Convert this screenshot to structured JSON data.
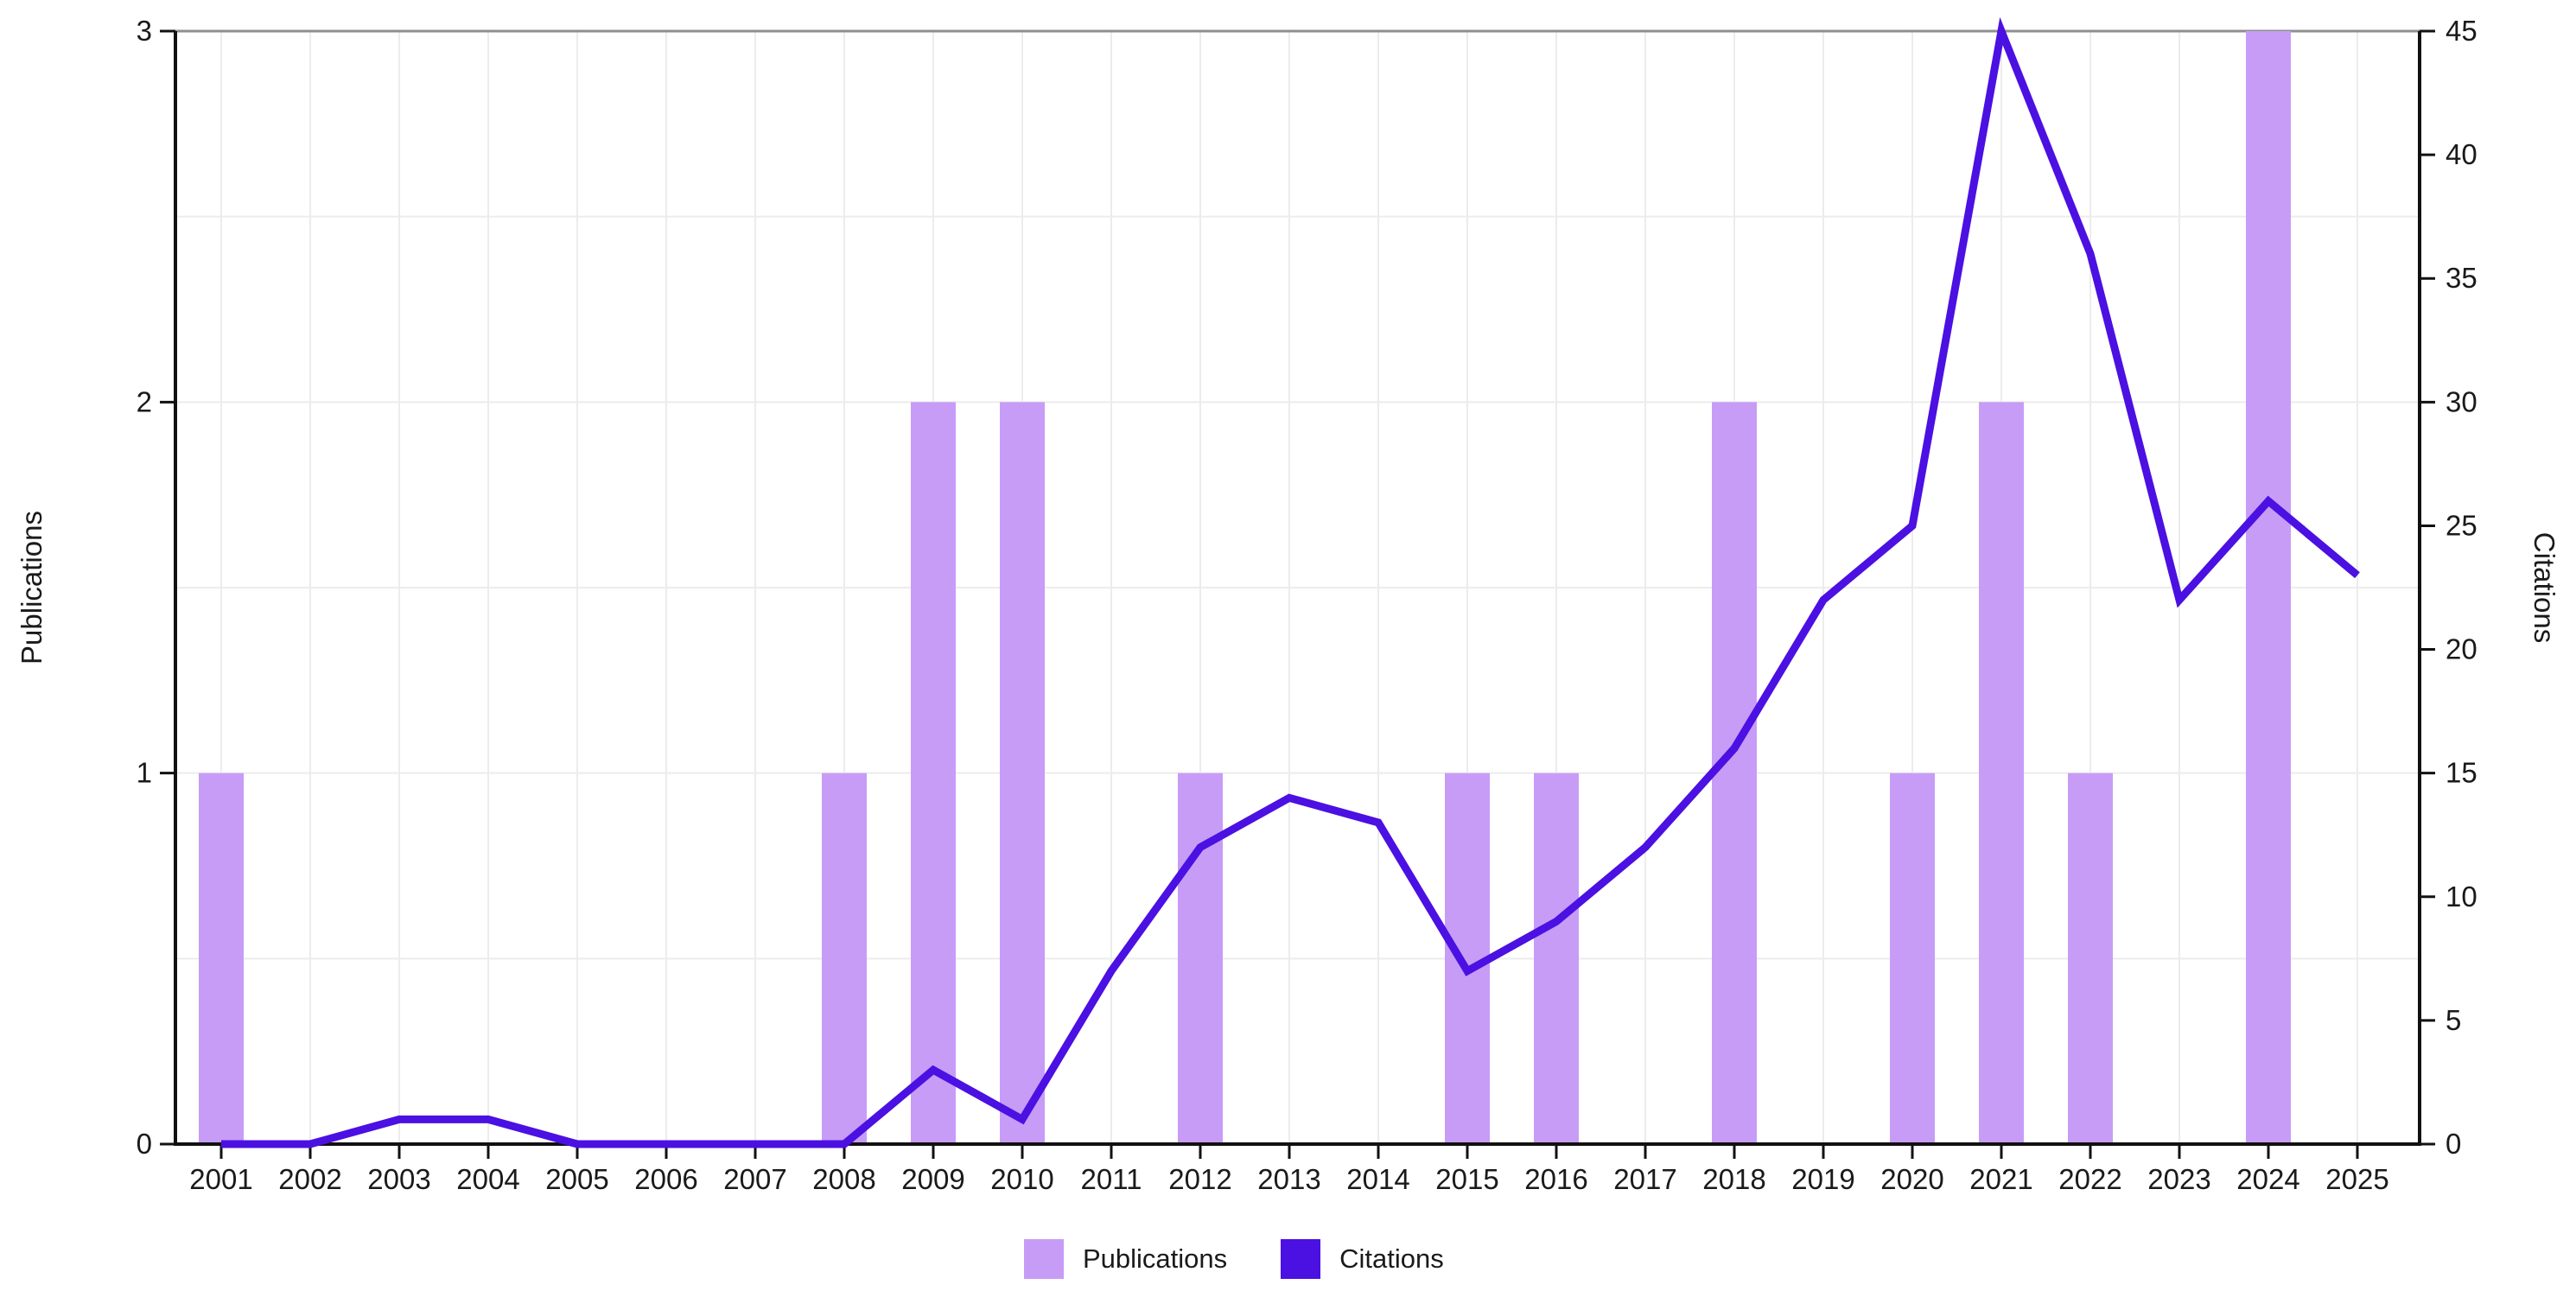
{
  "chart_data": {
    "type": "bar+line dual-axis",
    "categories": [
      "2001",
      "2002",
      "2003",
      "2004",
      "2005",
      "2006",
      "2007",
      "2008",
      "2009",
      "2010",
      "2011",
      "2012",
      "2013",
      "2014",
      "2015",
      "2016",
      "2017",
      "2018",
      "2019",
      "2020",
      "2021",
      "2022",
      "2023",
      "2024",
      "2025"
    ],
    "series": [
      {
        "name": "Publications",
        "type": "bar",
        "axis": "left",
        "color": "#c79cf7",
        "values": [
          1,
          0,
          0,
          0,
          0,
          0,
          0,
          1,
          2,
          2,
          0,
          1,
          0,
          0,
          1,
          1,
          0,
          2,
          0,
          1,
          2,
          1,
          0,
          3,
          0
        ]
      },
      {
        "name": "Citations",
        "type": "line",
        "axis": "right",
        "color": "#4b10e2",
        "values": [
          0,
          0,
          1,
          1,
          0,
          0,
          0,
          0,
          3,
          1,
          7,
          12,
          14,
          13,
          7,
          9,
          12,
          16,
          22,
          25,
          45,
          36,
          22,
          26,
          23
        ]
      }
    ],
    "yaxis_left": {
      "title": "Publications",
      "min": 0,
      "max": 3,
      "ticks": [
        0,
        1,
        2,
        3
      ]
    },
    "yaxis_right": {
      "title": "Citations",
      "min": 0,
      "max": 45,
      "ticks": [
        0,
        5,
        10,
        15,
        20,
        25,
        30,
        35,
        40,
        45
      ]
    },
    "xaxis": {
      "tick_labels": [
        "2001",
        "2002",
        "2003",
        "2004",
        "2005",
        "2006",
        "2007",
        "2008",
        "2009",
        "2010",
        "2011",
        "2012",
        "2013",
        "2014",
        "2015",
        "2016",
        "2017",
        "2018",
        "2019",
        "2020",
        "2021",
        "2022",
        "2023",
        "2024",
        "2025"
      ]
    },
    "legend": [
      {
        "label": "Publications",
        "color": "#c79cf7"
      },
      {
        "label": "Citations",
        "color": "#4b10e2"
      }
    ],
    "style": {
      "grid_color": "#ececec",
      "axis_color": "#111111",
      "top_border_color": "#8f8f8f",
      "text_color": "#1a1a1a",
      "minor_hgrid_step_publications": 0.5,
      "legend_position": "bottom-center",
      "grid": "on"
    }
  }
}
